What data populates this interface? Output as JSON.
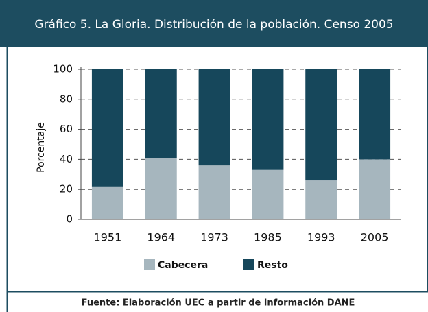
{
  "chart_data": {
    "type": "stacked_bar",
    "title": "Gráfico 5. La Gloria. Distribución de la población. Censo 2005",
    "y_label": "Porcentaje",
    "categories": [
      "1951",
      "1964",
      "1973",
      "1985",
      "1993",
      "2005"
    ],
    "series": [
      {
        "name": "Cabecera",
        "color": "#a6b6be",
        "values": [
          22,
          41,
          36,
          33,
          26,
          40
        ]
      },
      {
        "name": "Resto",
        "color": "#16475b",
        "values": [
          78,
          59,
          64,
          67,
          74,
          60
        ]
      }
    ],
    "ylim": [
      0,
      100
    ],
    "yticks": [
      0,
      20,
      40,
      60,
      80,
      100
    ],
    "grid": true,
    "source": "Fuente: Elaboración UEC a partir de información DANE"
  }
}
